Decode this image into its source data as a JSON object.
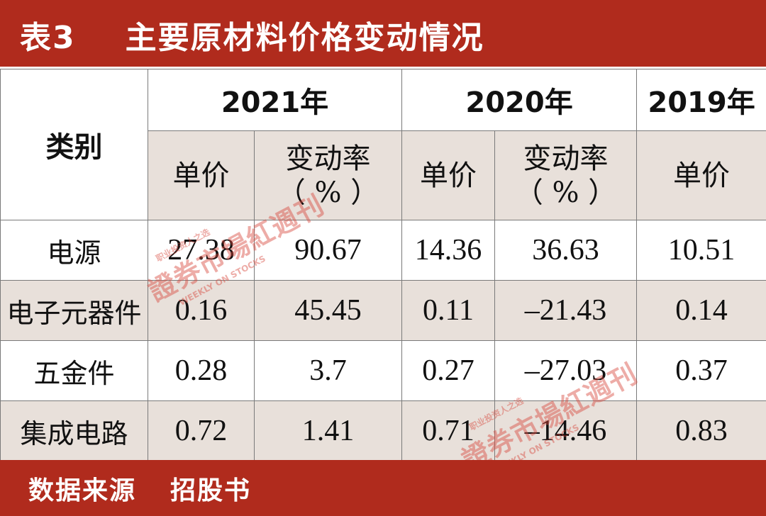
{
  "title": {
    "number": "表3",
    "text": "主要原材料价格变动情况"
  },
  "table": {
    "category_header": "类别",
    "years": [
      "2021年",
      "2020年",
      "2019年"
    ],
    "sub_headers": {
      "unit_price": "单价",
      "change_rate": "变动率",
      "change_unit": "（ % ）"
    },
    "rows": [
      {
        "category": "电源",
        "p2021": "27.38",
        "r2021": "90.67",
        "p2020": "14.36",
        "r2020": "36.63",
        "p2019": "10.51"
      },
      {
        "category": "电子元器件",
        "p2021": "0.16",
        "r2021": "45.45",
        "p2020": "0.11",
        "r2020": "–21.43",
        "p2019": "0.14"
      },
      {
        "category": "五金件",
        "p2021": "0.28",
        "r2021": "3.7",
        "p2020": "0.27",
        "r2020": "–27.03",
        "p2019": "0.37"
      },
      {
        "category": "集成电路",
        "p2021": "0.72",
        "r2021": "1.41",
        "p2020": "0.71",
        "r2020": "–14.46",
        "p2019": "0.83"
      }
    ]
  },
  "footer": {
    "label": "数据来源",
    "value": "招股书"
  },
  "watermark": {
    "text": "證券市場紅週刊",
    "tagline": "职业投资人之选",
    "english": "WEEKLY ON STOCKS"
  }
}
